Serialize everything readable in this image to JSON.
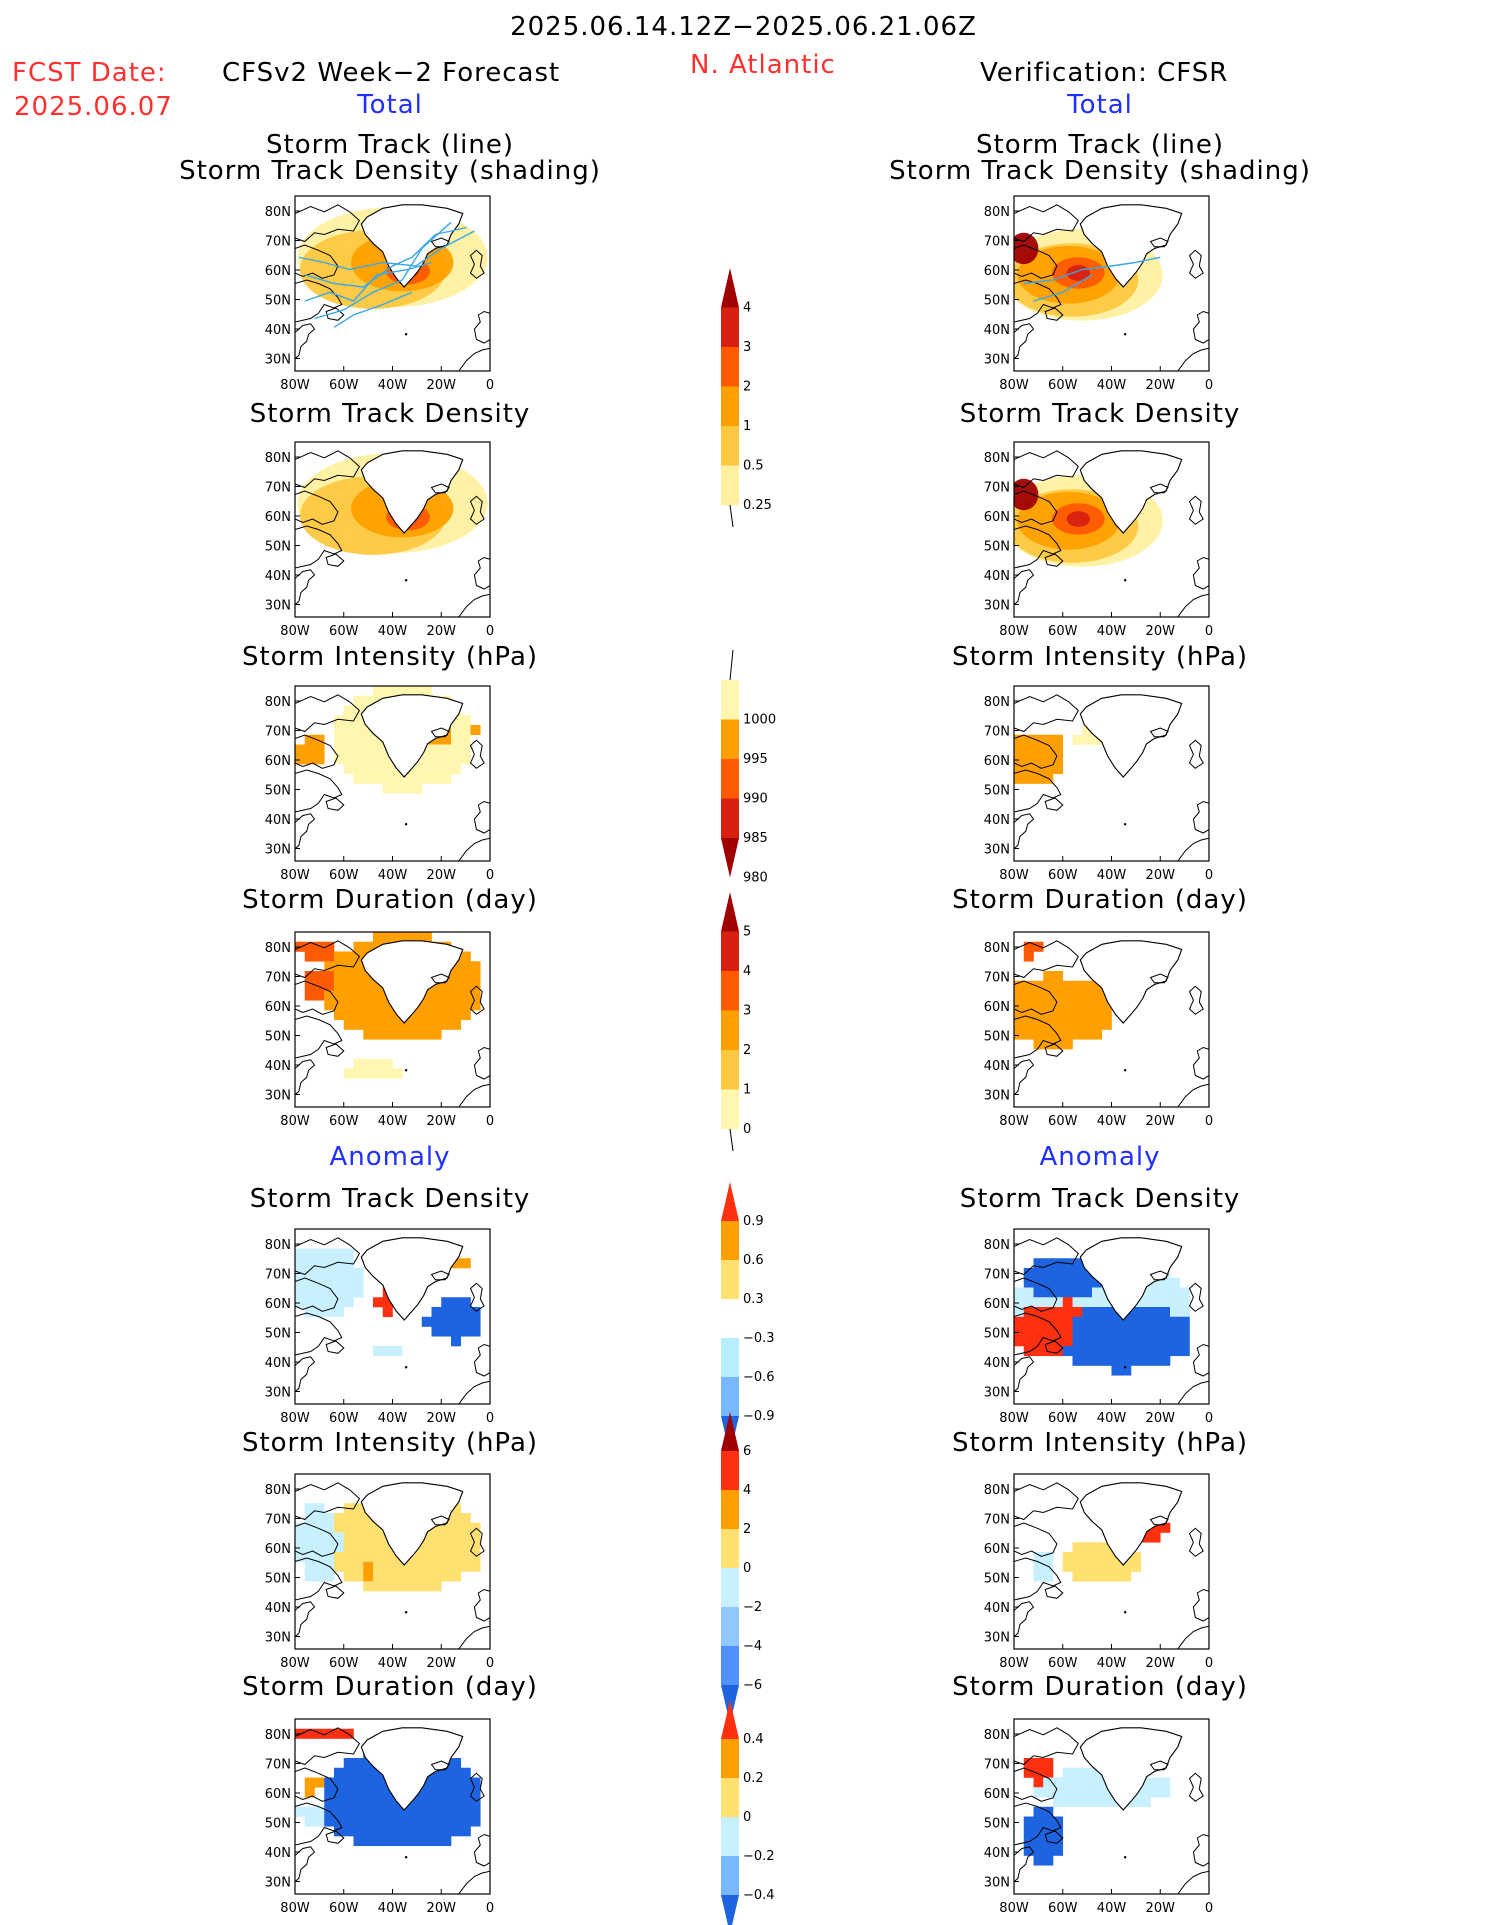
{
  "header": {
    "period": "2025.06.14.12Z−2025.06.21.06Z",
    "fcst_label": "FCST Date:",
    "fcst_date": "2025.06.07",
    "forecast_title": "CFSv2 Week−2 Forecast",
    "region": "N. Atlantic",
    "verification_title": "Verification: CFSR"
  },
  "sections": {
    "total": "Total",
    "anomaly": "Anomaly"
  },
  "panel_titles": {
    "track_line": "Storm Track (line)",
    "track_shading": "Storm Track Density (shading)",
    "density": "Storm Track Density",
    "intensity": "Storm Intensity (hPa)",
    "duration": "Storm Duration (day)"
  },
  "axes": {
    "lon_ticks": [
      "80W",
      "60W",
      "40W",
      "20W",
      "0"
    ],
    "lat_ticks": [
      "80N",
      "70N",
      "60N",
      "50N",
      "40N",
      "30N"
    ]
  },
  "colorbars": [
    {
      "id": "density_total",
      "levels": [
        "4",
        "3",
        "2",
        "1",
        "0.5",
        "0.25"
      ],
      "colors": [
        "#a00000",
        "#d82010",
        "#ff5a00",
        "#ffa000",
        "#ffc840",
        "#fff0a0"
      ],
      "direction": "up"
    },
    {
      "id": "intensity_total",
      "levels": [
        "1000",
        "995",
        "990",
        "985",
        "980"
      ],
      "colors": [
        "#fff6b0",
        "#ffa000",
        "#ff5a00",
        "#d82010",
        "#a00000"
      ],
      "direction": "down"
    },
    {
      "id": "duration_total",
      "levels": [
        "5",
        "4",
        "3",
        "2",
        "1",
        "0"
      ],
      "colors": [
        "#a00000",
        "#d82010",
        "#ff5a00",
        "#ffa000",
        "#ffc840",
        "#fff6b0"
      ],
      "direction": "up"
    },
    {
      "id": "density_anom",
      "levels": [
        "0.9",
        "0.6",
        "0.3",
        "−0.3",
        "−0.6",
        "−0.9"
      ],
      "colors": [
        "#ff3010",
        "#ffa000",
        "#ffe070",
        "#ffffff",
        "#b8ecff",
        "#78b8ff",
        "#1e64e0"
      ],
      "direction": "both"
    },
    {
      "id": "intensity_anom",
      "levels": [
        "6",
        "4",
        "2",
        "0",
        "−2",
        "−4",
        "−6"
      ],
      "colors": [
        "#a00000",
        "#ff3010",
        "#ffa000",
        "#ffe070",
        "#c8f0ff",
        "#90c8ff",
        "#5090ff",
        "#1e64e0"
      ],
      "direction": "both"
    },
    {
      "id": "duration_anom",
      "levels": [
        "0.4",
        "0.2",
        "0",
        "−0.2",
        "−0.4"
      ],
      "colors": [
        "#ff3010",
        "#ffa000",
        "#ffe070",
        "#c8f0ff",
        "#78b8ff",
        "#1e64e0"
      ],
      "direction": "both"
    }
  ]
}
